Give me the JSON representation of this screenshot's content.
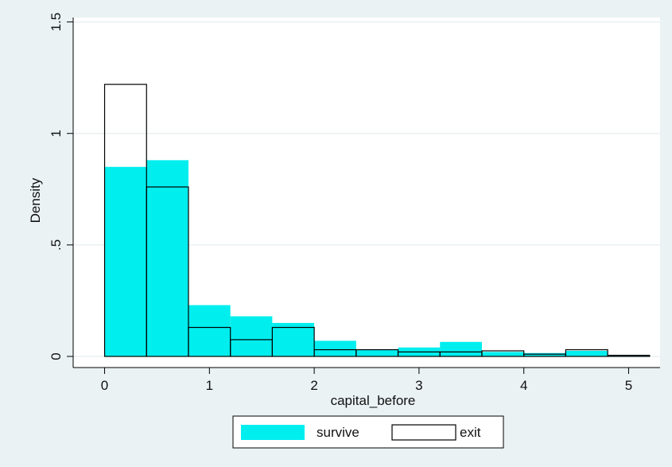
{
  "chart_data": {
    "type": "bar",
    "title": "",
    "xlabel": "capital_before",
    "ylabel": "Density",
    "xlim": [
      -0.3,
      5.3
    ],
    "ylim": [
      -0.05,
      1.52
    ],
    "x_ticks": [
      0,
      1,
      2,
      3,
      4,
      5
    ],
    "x_tick_labels": [
      "0",
      "1",
      "2",
      "3",
      "4",
      "5"
    ],
    "y_ticks": [
      0,
      0.5,
      1,
      1.5
    ],
    "y_tick_labels": [
      "0",
      ".5",
      "1",
      "1.5"
    ],
    "grid": true,
    "legend_position": "bottom",
    "bin_width": 0.4,
    "series": [
      {
        "name": "survive",
        "style": "filled",
        "color": "#00eeee",
        "bins": [
          {
            "start": 0.0,
            "value": 0.85
          },
          {
            "start": 0.4,
            "value": 0.88
          },
          {
            "start": 0.8,
            "value": 0.23
          },
          {
            "start": 1.2,
            "value": 0.18
          },
          {
            "start": 1.6,
            "value": 0.15
          },
          {
            "start": 2.0,
            "value": 0.07
          },
          {
            "start": 2.4,
            "value": 0.03
          },
          {
            "start": 2.8,
            "value": 0.04
          },
          {
            "start": 3.2,
            "value": 0.065
          },
          {
            "start": 3.6,
            "value": 0.02
          },
          {
            "start": 4.0,
            "value": 0.015
          },
          {
            "start": 4.4,
            "value": 0.025
          },
          {
            "start": 4.8,
            "value": 0.005
          }
        ]
      },
      {
        "name": "exit",
        "style": "outline",
        "color": "#000000",
        "bins": [
          {
            "start": 0.0,
            "value": 1.22
          },
          {
            "start": 0.4,
            "value": 0.76
          },
          {
            "start": 0.8,
            "value": 0.13
          },
          {
            "start": 1.2,
            "value": 0.075
          },
          {
            "start": 1.6,
            "value": 0.13
          },
          {
            "start": 2.0,
            "value": 0.03
          },
          {
            "start": 2.4,
            "value": 0.03
          },
          {
            "start": 2.8,
            "value": 0.02
          },
          {
            "start": 3.2,
            "value": 0.02
          },
          {
            "start": 3.6,
            "value": 0.025
          },
          {
            "start": 4.0,
            "value": 0.01
          },
          {
            "start": 4.4,
            "value": 0.03
          },
          {
            "start": 4.8,
            "value": 0.005
          }
        ]
      }
    ]
  },
  "legend": {
    "items": [
      {
        "label": "survive",
        "swatch": "filled",
        "color": "#00eeee"
      },
      {
        "label": "exit",
        "swatch": "outline",
        "color": "#000000"
      }
    ]
  },
  "colors": {
    "background": "#eaf2f3",
    "plot_background": "#ffffff",
    "grid": "#e6eef0"
  }
}
